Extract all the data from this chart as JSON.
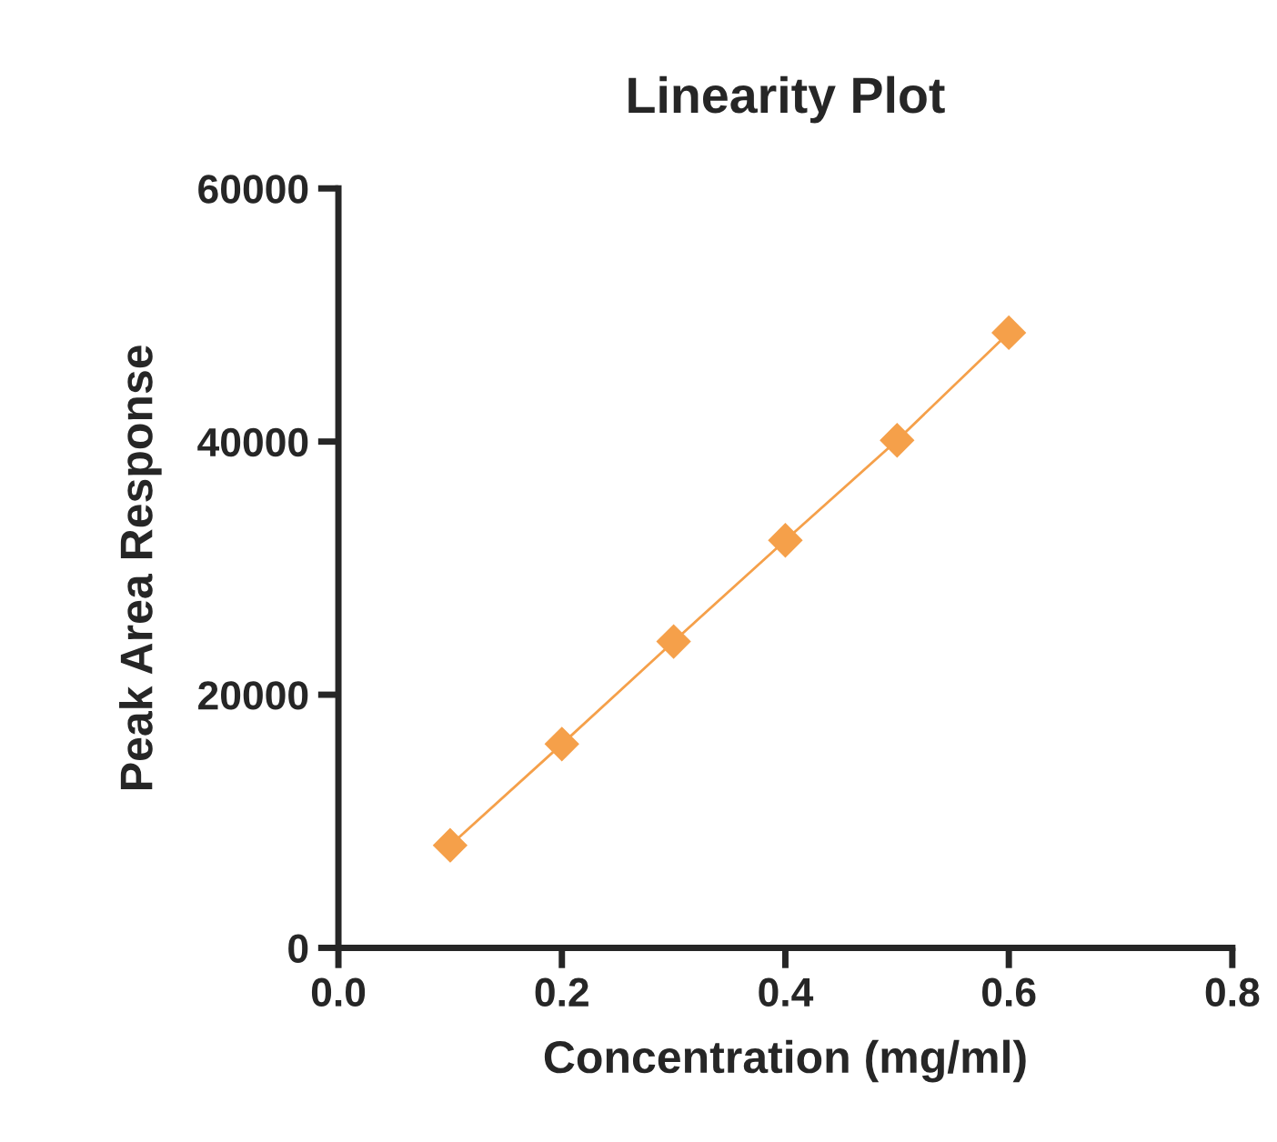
{
  "chart_data": {
    "type": "line",
    "title": "Linearity Plot",
    "xlabel": "Concentration (mg/ml)",
    "ylabel": "Peak Area Response",
    "x": [
      0.1,
      0.2,
      0.3,
      0.4,
      0.5,
      0.6
    ],
    "series": [
      {
        "color": "#f5a04a",
        "values": [
          8100,
          16100,
          24200,
          32200,
          40100,
          48600
        ]
      }
    ],
    "xlim": [
      0,
      0.8
    ],
    "xticks": [
      {
        "value": 0,
        "label": "0.0"
      },
      0.2,
      0.4,
      0.6,
      0.8
    ],
    "ylim": [
      0,
      60000
    ],
    "yticks": [
      0,
      20000,
      40000,
      60000
    ],
    "marker": "diamond",
    "line_style": "solid",
    "grid": false,
    "legend": false
  }
}
